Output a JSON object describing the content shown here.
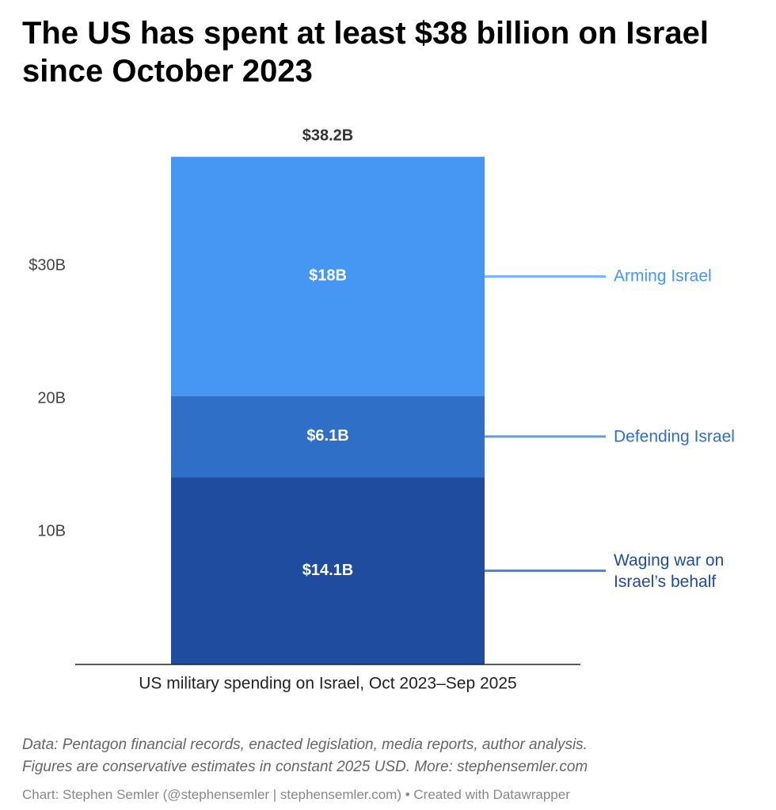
{
  "chart_data": {
    "type": "stacked-bar",
    "title": "The US has spent at least $38 billion on Israel since October 2023",
    "categories": [
      "US military spending on Israel, Oct 2023–Sep 2025"
    ],
    "series": [
      {
        "name": "Waging war on Israel’s behalf",
        "color": "#1f4c9e",
        "values": [
          14.1
        ],
        "value_labels": [
          "$14.1B"
        ]
      },
      {
        "name": "Defending Israel",
        "color": "#2f6fc8",
        "values": [
          6.1
        ],
        "value_labels": [
          "$6.1B"
        ]
      },
      {
        "name": "Arming Israel",
        "color": "#4597f3",
        "values": [
          18
        ],
        "value_labels": [
          "$18B"
        ]
      }
    ],
    "total": 38.2,
    "total_label": "$38.2B",
    "ylim": [
      0,
      40
    ],
    "yticks": [
      {
        "value": 10,
        "label": "10B"
      },
      {
        "value": 20,
        "label": "20B"
      },
      {
        "value": 30,
        "label": "$30B"
      }
    ],
    "grid": false,
    "notes": [
      "Data: Pentagon financial records, enacted legislation, media reports, author analysis.",
      "Figures are conservative estimates in constant 2025 USD. More: stephensemler.com"
    ],
    "footer": "Chart: Stephen Semler (@stephensemler | stephensemler.com) • Created with Datawrapper"
  }
}
